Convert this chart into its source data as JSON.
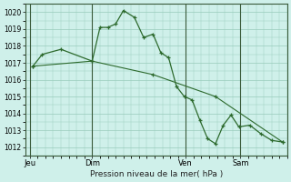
{
  "bg_color": "#cff0ea",
  "grid_color": "#99ccbb",
  "line_color": "#2d6a2d",
  "marker_color": "#2d6a2d",
  "xlabel": "Pression niveau de la mer( hPa )",
  "ylim": [
    1011.5,
    1020.5
  ],
  "yticks": [
    1012,
    1013,
    1014,
    1015,
    1016,
    1017,
    1018,
    1019,
    1020
  ],
  "xtick_labels": [
    "Jeu",
    "Dim",
    "Ven",
    "Sam"
  ],
  "xtick_positions": [
    0,
    4,
    10,
    13.5
  ],
  "vline_positions": [
    0,
    4,
    10,
    13.5
  ],
  "xlim": [
    -0.3,
    16.5
  ],
  "series1_x": [
    0.2,
    0.8,
    2.0,
    4.0,
    4.5,
    5.0,
    5.5,
    6.0,
    6.7,
    7.3,
    7.9,
    8.4,
    8.9,
    9.4,
    9.9,
    10.4,
    10.9,
    11.4,
    11.9,
    12.4,
    12.9,
    13.4,
    14.1,
    14.8,
    15.5,
    16.2
  ],
  "series1_y": [
    1016.8,
    1017.5,
    1017.8,
    1017.1,
    1019.1,
    1019.1,
    1019.3,
    1020.1,
    1019.7,
    1018.5,
    1018.7,
    1017.6,
    1017.3,
    1015.6,
    1015.0,
    1014.8,
    1013.6,
    1012.5,
    1012.2,
    1013.3,
    1013.9,
    1013.2,
    1013.3,
    1012.8,
    1012.4,
    1012.3
  ],
  "series2_x": [
    0.2,
    4.0,
    7.9,
    11.9,
    16.2
  ],
  "series2_y": [
    1016.8,
    1017.1,
    1016.3,
    1015.0,
    1012.3
  ]
}
